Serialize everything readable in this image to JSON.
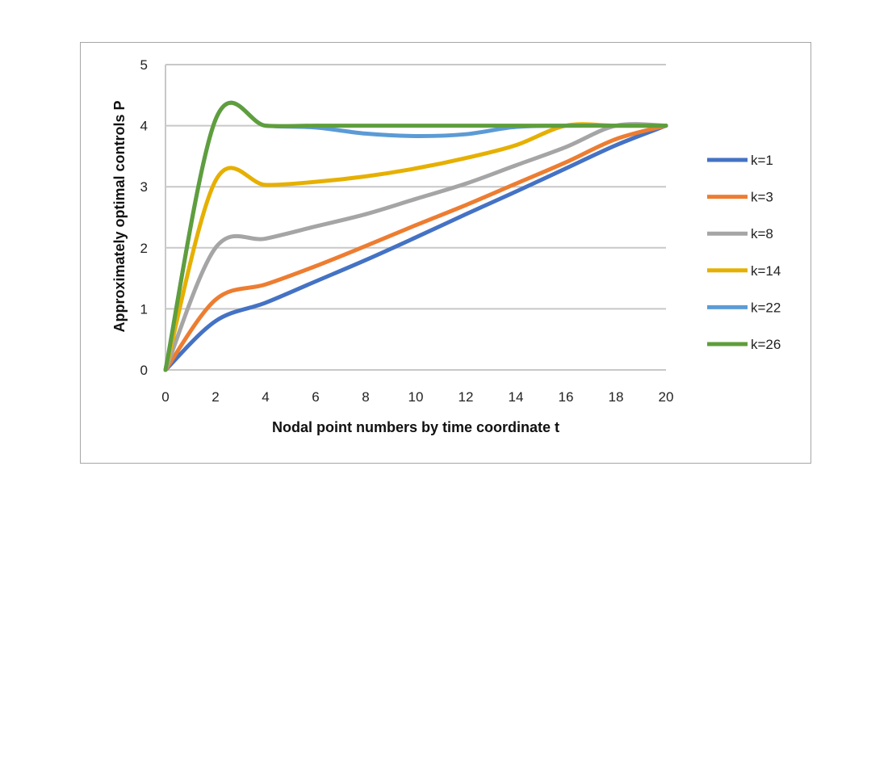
{
  "chart_data": {
    "type": "line",
    "title": "",
    "xlabel": "Nodal point numbers by time coordinate  t",
    "ylabel": "Approximately  optimal  controls P",
    "xlim": [
      0,
      20
    ],
    "ylim": [
      0,
      5
    ],
    "xticks": [
      0,
      2,
      4,
      6,
      8,
      10,
      12,
      14,
      16,
      18,
      20
    ],
    "yticks": [
      0,
      1,
      2,
      3,
      4,
      5
    ],
    "grid": "horizontal",
    "legend_position": "right",
    "smoothed": true,
    "x": [
      0,
      2,
      4,
      6,
      8,
      10,
      12,
      14,
      16,
      18,
      20
    ],
    "series": [
      {
        "name": "k=1",
        "color": "#4472c4",
        "values": [
          0,
          0.8,
          1.1,
          1.45,
          1.8,
          2.17,
          2.55,
          2.92,
          3.3,
          3.68,
          4.0
        ]
      },
      {
        "name": "k=3",
        "color": "#ed7d31",
        "values": [
          0,
          1.15,
          1.4,
          1.7,
          2.03,
          2.37,
          2.7,
          3.05,
          3.4,
          3.78,
          4.0
        ]
      },
      {
        "name": "k=8",
        "color": "#a5a5a5",
        "values": [
          0,
          2.0,
          2.15,
          2.35,
          2.55,
          2.8,
          3.05,
          3.35,
          3.65,
          4.0,
          4.0
        ]
      },
      {
        "name": "k=14",
        "color": "#e6b000",
        "values": [
          0,
          3.1,
          3.03,
          3.08,
          3.17,
          3.3,
          3.47,
          3.68,
          4.0,
          4.0,
          4.0
        ]
      },
      {
        "name": "k=22",
        "color": "#5b9bd5",
        "values": [
          0,
          4.1,
          4.0,
          3.97,
          3.87,
          3.83,
          3.86,
          3.98,
          4.0,
          4.0,
          4.0
        ]
      },
      {
        "name": "k=26",
        "color": "#5f9e3c",
        "values": [
          0,
          4.1,
          4.0,
          4.0,
          4.0,
          4.0,
          4.0,
          4.0,
          4.0,
          4.0,
          4.0
        ]
      }
    ]
  }
}
